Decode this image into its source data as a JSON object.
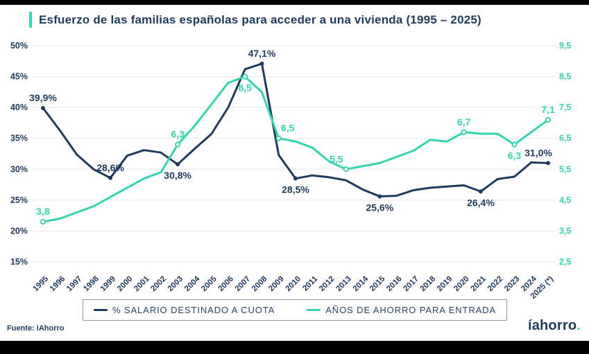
{
  "header": {
    "title": "Esfuerzo de las familias españolas para acceder a una vivienda (1995 – 2025)"
  },
  "legend": {
    "items": [
      {
        "label": "% SALARIO  DESTINADO A CUOTA",
        "color": "#1e3a5f"
      },
      {
        "label": "AÑOS DE AHORRO PARA ENTRADA",
        "color": "#32d6ae"
      }
    ]
  },
  "footer": {
    "source": "Fuente: iAhorro",
    "logo_text": "íahorro",
    "logo_dot": "."
  },
  "colors": {
    "navy": "#1e3a5f",
    "teal": "#32d6ae",
    "accent_bar": "#2fd9c0",
    "grid": "#eaeaf2",
    "legend_border": "#8d99ad",
    "background": "#ffffff",
    "letterbox": "#000000"
  },
  "chart_data": {
    "type": "line",
    "title": "Esfuerzo de las familias españolas para acceder a una vivienda (1995 – 2025)",
    "categories": [
      "1995",
      "1996",
      "1997",
      "1998",
      "1999",
      "2000",
      "2001",
      "2002",
      "2003",
      "2004",
      "2005",
      "2006",
      "2007",
      "2008",
      "2009",
      "2010",
      "2011",
      "2012",
      "2013",
      "2014",
      "2015",
      "2016",
      "2017",
      "2018",
      "2019",
      "2020",
      "2021",
      "2022",
      "2023",
      "2024",
      "2025 (*)"
    ],
    "series": [
      {
        "name": "% SALARIO  DESTINADO A CUOTA",
        "axis": "left",
        "color": "#1e3a5f",
        "marker_style": "solid",
        "values": [
          39.9,
          36.3,
          32.4,
          30.0,
          28.6,
          32.2,
          33.1,
          32.7,
          30.8,
          33.3,
          35.7,
          40.0,
          46.2,
          47.1,
          32.3,
          28.5,
          29.0,
          28.7,
          28.2,
          26.7,
          25.6,
          25.7,
          26.6,
          27.0,
          27.2,
          27.4,
          26.4,
          28.4,
          28.8,
          31.1,
          31.0
        ],
        "labeled_points": [
          {
            "category": "1995",
            "text": "39,9%",
            "placement": "above"
          },
          {
            "category": "1999",
            "text": "28,6%",
            "placement": "above"
          },
          {
            "category": "2003",
            "text": "30,8%",
            "placement": "below"
          },
          {
            "category": "2008",
            "text": "47,1%",
            "placement": "above"
          },
          {
            "category": "2010",
            "text": "28,5%",
            "placement": "below"
          },
          {
            "category": "2015",
            "text": "25,6%",
            "placement": "below"
          },
          {
            "category": "2021",
            "text": "26,4%",
            "placement": "below"
          },
          {
            "category": "2025 (*)",
            "text": "31,0%",
            "placement": "above-left"
          }
        ]
      },
      {
        "name": "AÑOS DE AHORRO PARA ENTRADA",
        "axis": "right",
        "color": "#32d6ae",
        "marker_style": "hollow",
        "values": [
          3.8,
          3.9,
          4.1,
          4.3,
          4.6,
          4.9,
          5.2,
          5.4,
          6.3,
          6.9,
          7.6,
          8.3,
          8.5,
          8.0,
          6.5,
          6.4,
          6.2,
          5.75,
          5.5,
          5.6,
          5.7,
          5.9,
          6.1,
          6.45,
          6.4,
          6.7,
          6.65,
          6.65,
          6.3,
          6.7,
          7.1
        ],
        "labeled_points": [
          {
            "category": "1995",
            "text": "3,8",
            "placement": "above"
          },
          {
            "category": "2003",
            "text": "6,3",
            "placement": "above"
          },
          {
            "category": "2007",
            "text": "8,5",
            "placement": "below"
          },
          {
            "category": "2009",
            "text": "6,5",
            "placement": "above-right"
          },
          {
            "category": "2013",
            "text": "5,5",
            "placement": "above-left"
          },
          {
            "category": "2020",
            "text": "6,7",
            "placement": "above"
          },
          {
            "category": "2023",
            "text": "6,3",
            "placement": "below"
          },
          {
            "category": "2025 (*)",
            "text": "7,1",
            "placement": "above"
          }
        ]
      }
    ],
    "left_axis": {
      "ticks": [
        "50%",
        "45%",
        "40%",
        "35%",
        "30%",
        "25%",
        "20%",
        "15%"
      ],
      "min": 15,
      "max": 50
    },
    "right_axis": {
      "ticks": [
        "9,5",
        "8,5",
        "7,5",
        "6,5",
        "5,5",
        "4,5",
        "3,5",
        "2,5"
      ],
      "min": 2.5,
      "max": 9.5
    },
    "grid": true,
    "legend_position": "bottom"
  }
}
